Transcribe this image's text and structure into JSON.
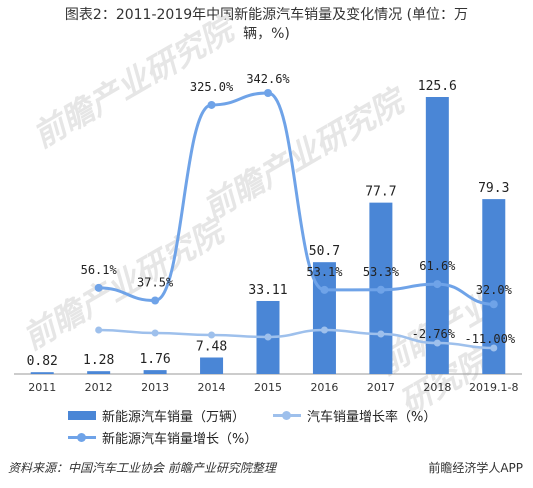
{
  "title_line1": "图表2：2011-2019年中国新能源汽车销量及变化情况 (单位：万",
  "title_line2": "辆，%)",
  "footer_source": "资料来源：中国汽车工业协会 前瞻产业研究院整理",
  "footer_brand": "前瞻经济学人APP",
  "watermark": "前瞻产业研究院",
  "colors": {
    "bar": "#4a86d6",
    "growth_rate": "#9ec0ec",
    "growth": "#6fa3e8"
  },
  "chart_data": {
    "type": "bar",
    "categories": [
      "2011",
      "2012",
      "2013",
      "2014",
      "2015",
      "2016",
      "2017",
      "2018",
      "2019.1-8"
    ],
    "series": [
      {
        "name": "新能源汽车销量（万辆）",
        "type": "bar",
        "values": [
          0.82,
          1.28,
          1.76,
          7.48,
          33.11,
          50.7,
          77.7,
          125.6,
          79.3
        ],
        "labels": [
          "0.82",
          "1.28",
          "1.76",
          "7.48",
          "33.11",
          "50.7",
          "77.7",
          "125.6",
          "79.3"
        ]
      },
      {
        "name": "汽车销量增长率（%）",
        "type": "line",
        "values": [
          null,
          null,
          null,
          null,
          null,
          null,
          53.3,
          -2.76,
          -11.0
        ],
        "labels": [
          "",
          "",
          "",
          "",
          "",
          "",
          "",
          "-2.76%",
          "-11.00%"
        ]
      },
      {
        "name": "新能源汽车销量增长（%）",
        "type": "line",
        "values": [
          null,
          56.1,
          37.5,
          325.0,
          342.6,
          53.1,
          53.3,
          61.6,
          32.0
        ],
        "labels": [
          "",
          "56.1%",
          "37.5%",
          "325.0%",
          "342.6%",
          "53.1%",
          "53.3%",
          "61.6%",
          "32.0%"
        ]
      }
    ],
    "grid": false,
    "legend_position": "bottom"
  }
}
